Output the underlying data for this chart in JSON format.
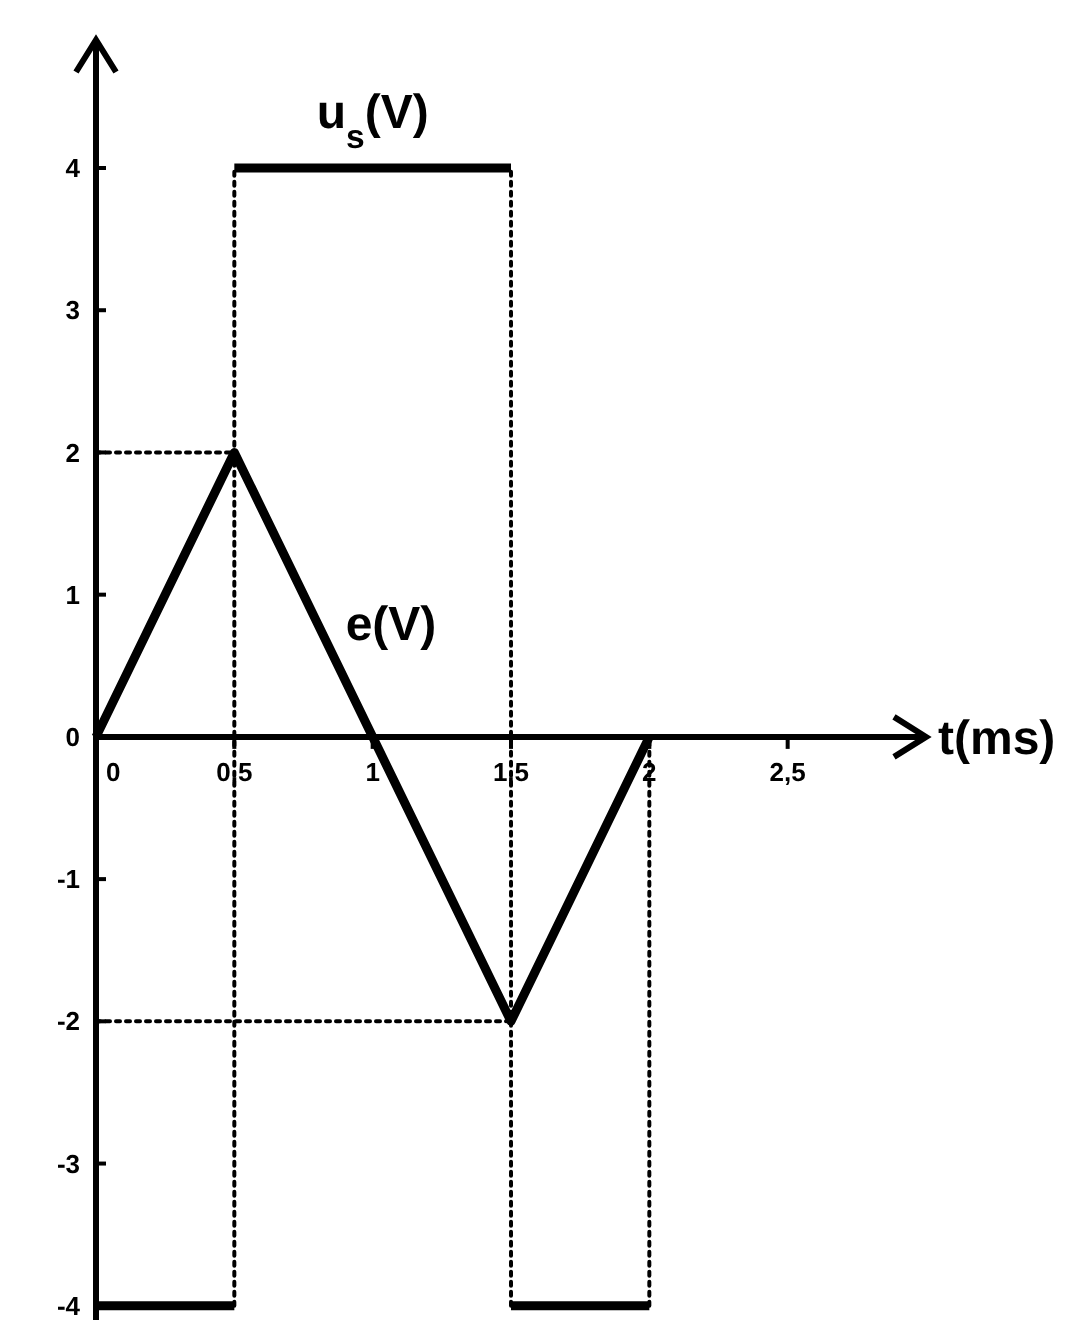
{
  "chart_data": {
    "type": "line",
    "xlabel": "t(ms)",
    "xlim": [
      0,
      3
    ],
    "ylim": [
      -4.1,
      4.9
    ],
    "xticks": [
      0,
      {
        "value": 0.5,
        "label": "0,5"
      },
      1,
      {
        "value": 1.5,
        "label": "1,5"
      },
      2,
      {
        "value": 2.5,
        "label": "2,5"
      }
    ],
    "yticks": [
      -4,
      -3,
      -2,
      -1,
      0,
      1,
      2,
      3,
      4
    ],
    "grid": false,
    "legend": false,
    "marker": "none",
    "series": [
      {
        "name": "u$_{s}$(V)",
        "color": "#000000",
        "x": [
          0,
          0.5,
          null,
          0.5,
          1.5,
          null,
          1.5,
          2
        ],
        "values": [
          -4,
          -4,
          null,
          4,
          4,
          null,
          -4,
          -4
        ]
      },
      {
        "name": "e(V)",
        "color": "#000000",
        "x": [
          0,
          0.5,
          1.5,
          2
        ],
        "values": [
          0,
          2,
          -2,
          0
        ]
      }
    ],
    "ref_lines": [
      {
        "axis": "y",
        "value": 2,
        "color": "#000000",
        "line_style": "dotted"
      },
      {
        "axis": "y",
        "value": -2,
        "color": "#000000",
        "line_style": "dotted"
      },
      {
        "axis": "x",
        "value": 0.5,
        "color": "#000000",
        "line_style": "dotted"
      },
      {
        "axis": "x",
        "value": 1.5,
        "color": "#000000",
        "line_style": "dotted"
      },
      {
        "axis": "x",
        "value": 2,
        "color": "#000000",
        "line_style": "dotted"
      }
    ]
  }
}
